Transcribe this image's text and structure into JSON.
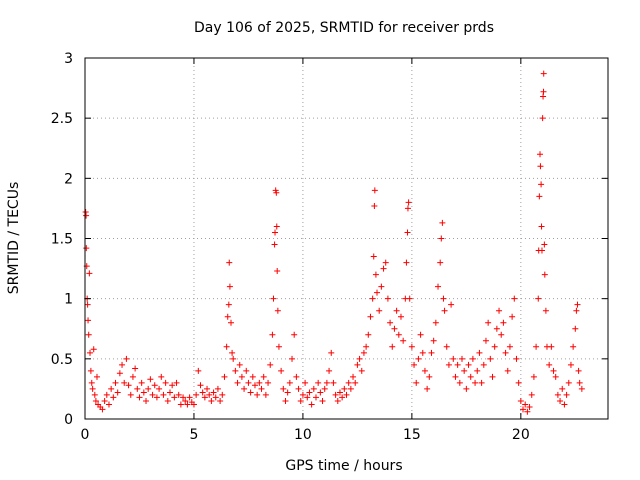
{
  "chart_data": {
    "type": "scatter",
    "title": "Day 106 of 2025, SRMTID for receiver prds",
    "xlabel": "GPS time / hours",
    "ylabel": "SRMTID / TECUs",
    "xlim": [
      0,
      24
    ],
    "ylim": [
      0,
      3
    ],
    "xticks": [
      0,
      5,
      10,
      15,
      20
    ],
    "yticks": [
      0,
      0.5,
      1,
      1.5,
      2,
      2.5,
      3
    ],
    "xtick_labels": [
      "0",
      "5",
      "10",
      "15",
      "20"
    ],
    "ytick_labels": [
      "0",
      "0.5",
      "1",
      "1.5",
      "2",
      "2.5",
      "3"
    ],
    "grid": true,
    "marker": "+",
    "series": [
      {
        "name": "SRMTID",
        "color": "#ff0000",
        "points": [
          [
            0.03,
            1.72
          ],
          [
            0.05,
            1.69
          ],
          [
            0.06,
            1.42
          ],
          [
            0.08,
            1.27
          ],
          [
            0.1,
            1.0
          ],
          [
            0.12,
            0.95
          ],
          [
            0.14,
            0.82
          ],
          [
            0.17,
            0.7
          ],
          [
            0.2,
            1.21
          ],
          [
            0.23,
            0.55
          ],
          [
            0.27,
            0.4
          ],
          [
            0.31,
            0.3
          ],
          [
            0.35,
            0.25
          ],
          [
            0.4,
            0.58
          ],
          [
            0.45,
            0.2
          ],
          [
            0.5,
            0.15
          ],
          [
            0.55,
            0.35
          ],
          [
            0.6,
            0.12
          ],
          [
            0.7,
            0.1
          ],
          [
            0.8,
            0.08
          ],
          [
            0.9,
            0.15
          ],
          [
            1.0,
            0.2
          ],
          [
            1.1,
            0.12
          ],
          [
            1.2,
            0.25
          ],
          [
            1.3,
            0.18
          ],
          [
            1.4,
            0.3
          ],
          [
            1.5,
            0.22
          ],
          [
            1.6,
            0.38
          ],
          [
            1.7,
            0.45
          ],
          [
            1.8,
            0.3
          ],
          [
            1.9,
            0.5
          ],
          [
            2.0,
            0.28
          ],
          [
            2.1,
            0.2
          ],
          [
            2.2,
            0.35
          ],
          [
            2.3,
            0.42
          ],
          [
            2.4,
            0.25
          ],
          [
            2.5,
            0.18
          ],
          [
            2.6,
            0.3
          ],
          [
            2.7,
            0.22
          ],
          [
            2.8,
            0.15
          ],
          [
            2.9,
            0.25
          ],
          [
            3.0,
            0.33
          ],
          [
            3.1,
            0.2
          ],
          [
            3.2,
            0.28
          ],
          [
            3.3,
            0.18
          ],
          [
            3.4,
            0.25
          ],
          [
            3.5,
            0.35
          ],
          [
            3.6,
            0.2
          ],
          [
            3.7,
            0.3
          ],
          [
            3.8,
            0.15
          ],
          [
            3.9,
            0.22
          ],
          [
            4.0,
            0.28
          ],
          [
            4.1,
            0.18
          ],
          [
            4.2,
            0.3
          ],
          [
            4.3,
            0.2
          ],
          [
            4.4,
            0.12
          ],
          [
            4.5,
            0.18
          ],
          [
            4.6,
            0.15
          ],
          [
            4.7,
            0.12
          ],
          [
            4.8,
            0.18
          ],
          [
            4.9,
            0.14
          ],
          [
            5.0,
            0.12
          ],
          [
            5.1,
            0.2
          ],
          [
            5.2,
            0.4
          ],
          [
            5.3,
            0.28
          ],
          [
            5.4,
            0.22
          ],
          [
            5.5,
            0.18
          ],
          [
            5.6,
            0.25
          ],
          [
            5.7,
            0.2
          ],
          [
            5.8,
            0.15
          ],
          [
            5.9,
            0.22
          ],
          [
            6.0,
            0.18
          ],
          [
            6.1,
            0.25
          ],
          [
            6.2,
            0.15
          ],
          [
            6.3,
            0.2
          ],
          [
            6.4,
            0.35
          ],
          [
            6.5,
            0.6
          ],
          [
            6.55,
            0.85
          ],
          [
            6.6,
            0.95
          ],
          [
            6.62,
            1.3
          ],
          [
            6.65,
            1.1
          ],
          [
            6.7,
            0.8
          ],
          [
            6.75,
            0.55
          ],
          [
            6.8,
            0.5
          ],
          [
            6.9,
            0.4
          ],
          [
            7.0,
            0.3
          ],
          [
            7.1,
            0.45
          ],
          [
            7.2,
            0.35
          ],
          [
            7.3,
            0.25
          ],
          [
            7.4,
            0.4
          ],
          [
            7.5,
            0.3
          ],
          [
            7.6,
            0.22
          ],
          [
            7.7,
            0.35
          ],
          [
            7.8,
            0.28
          ],
          [
            7.9,
            0.2
          ],
          [
            8.0,
            0.3
          ],
          [
            8.1,
            0.25
          ],
          [
            8.2,
            0.35
          ],
          [
            8.3,
            0.2
          ],
          [
            8.4,
            0.3
          ],
          [
            8.5,
            0.45
          ],
          [
            8.6,
            0.7
          ],
          [
            8.65,
            1.0
          ],
          [
            8.7,
            1.45
          ],
          [
            8.72,
            1.55
          ],
          [
            8.75,
            1.9
          ],
          [
            8.78,
            1.88
          ],
          [
            8.8,
            1.6
          ],
          [
            8.82,
            1.23
          ],
          [
            8.85,
            0.9
          ],
          [
            8.9,
            0.6
          ],
          [
            9.0,
            0.4
          ],
          [
            9.1,
            0.25
          ],
          [
            9.2,
            0.15
          ],
          [
            9.3,
            0.22
          ],
          [
            9.4,
            0.3
          ],
          [
            9.5,
            0.5
          ],
          [
            9.6,
            0.7
          ],
          [
            9.7,
            0.35
          ],
          [
            9.8,
            0.25
          ],
          [
            9.9,
            0.15
          ],
          [
            10.0,
            0.2
          ],
          [
            10.1,
            0.3
          ],
          [
            10.2,
            0.18
          ],
          [
            10.3,
            0.22
          ],
          [
            10.4,
            0.12
          ],
          [
            10.5,
            0.25
          ],
          [
            10.6,
            0.18
          ],
          [
            10.7,
            0.3
          ],
          [
            10.8,
            0.22
          ],
          [
            10.9,
            0.15
          ],
          [
            11.0,
            0.25
          ],
          [
            11.1,
            0.3
          ],
          [
            11.2,
            0.4
          ],
          [
            11.3,
            0.55
          ],
          [
            11.4,
            0.3
          ],
          [
            11.5,
            0.2
          ],
          [
            11.6,
            0.15
          ],
          [
            11.7,
            0.22
          ],
          [
            11.8,
            0.18
          ],
          [
            11.9,
            0.25
          ],
          [
            12.0,
            0.2
          ],
          [
            12.1,
            0.3
          ],
          [
            12.2,
            0.25
          ],
          [
            12.3,
            0.35
          ],
          [
            12.4,
            0.3
          ],
          [
            12.5,
            0.45
          ],
          [
            12.6,
            0.5
          ],
          [
            12.7,
            0.4
          ],
          [
            12.8,
            0.55
          ],
          [
            12.9,
            0.6
          ],
          [
            13.0,
            0.7
          ],
          [
            13.1,
            0.85
          ],
          [
            13.2,
            1.0
          ],
          [
            13.25,
            1.35
          ],
          [
            13.28,
            1.77
          ],
          [
            13.3,
            1.9
          ],
          [
            13.35,
            1.2
          ],
          [
            13.4,
            1.05
          ],
          [
            13.5,
            0.9
          ],
          [
            13.6,
            1.1
          ],
          [
            13.7,
            1.25
          ],
          [
            13.8,
            1.3
          ],
          [
            13.9,
            1.0
          ],
          [
            14.0,
            0.8
          ],
          [
            14.1,
            0.6
          ],
          [
            14.2,
            0.75
          ],
          [
            14.3,
            0.9
          ],
          [
            14.4,
            0.7
          ],
          [
            14.5,
            0.85
          ],
          [
            14.6,
            0.65
          ],
          [
            14.7,
            1.0
          ],
          [
            14.75,
            1.3
          ],
          [
            14.8,
            1.55
          ],
          [
            14.82,
            1.75
          ],
          [
            14.85,
            1.8
          ],
          [
            14.9,
            1.0
          ],
          [
            15.0,
            0.6
          ],
          [
            15.1,
            0.45
          ],
          [
            15.2,
            0.3
          ],
          [
            15.3,
            0.5
          ],
          [
            15.4,
            0.7
          ],
          [
            15.5,
            0.55
          ],
          [
            15.6,
            0.4
          ],
          [
            15.7,
            0.25
          ],
          [
            15.8,
            0.35
          ],
          [
            15.9,
            0.55
          ],
          [
            16.0,
            0.65
          ],
          [
            16.1,
            0.8
          ],
          [
            16.2,
            1.1
          ],
          [
            16.3,
            1.3
          ],
          [
            16.35,
            1.5
          ],
          [
            16.4,
            1.63
          ],
          [
            16.45,
            1.0
          ],
          [
            16.5,
            0.9
          ],
          [
            16.6,
            0.6
          ],
          [
            16.7,
            0.45
          ],
          [
            16.8,
            0.95
          ],
          [
            16.9,
            0.5
          ],
          [
            17.0,
            0.35
          ],
          [
            17.1,
            0.45
          ],
          [
            17.2,
            0.3
          ],
          [
            17.3,
            0.5
          ],
          [
            17.4,
            0.4
          ],
          [
            17.5,
            0.25
          ],
          [
            17.6,
            0.45
          ],
          [
            17.7,
            0.35
          ],
          [
            17.8,
            0.5
          ],
          [
            17.9,
            0.3
          ],
          [
            18.0,
            0.4
          ],
          [
            18.1,
            0.55
          ],
          [
            18.2,
            0.3
          ],
          [
            18.3,
            0.45
          ],
          [
            18.4,
            0.65
          ],
          [
            18.5,
            0.8
          ],
          [
            18.6,
            0.5
          ],
          [
            18.7,
            0.35
          ],
          [
            18.8,
            0.6
          ],
          [
            18.9,
            0.75
          ],
          [
            19.0,
            0.9
          ],
          [
            19.1,
            0.7
          ],
          [
            19.2,
            0.8
          ],
          [
            19.3,
            0.55
          ],
          [
            19.4,
            0.4
          ],
          [
            19.5,
            0.6
          ],
          [
            19.6,
            0.85
          ],
          [
            19.7,
            1.0
          ],
          [
            19.8,
            0.5
          ],
          [
            19.9,
            0.3
          ],
          [
            20.0,
            0.15
          ],
          [
            20.1,
            0.08
          ],
          [
            20.2,
            0.12
          ],
          [
            20.3,
            0.06
          ],
          [
            20.4,
            0.1
          ],
          [
            20.5,
            0.2
          ],
          [
            20.6,
            0.35
          ],
          [
            20.7,
            0.6
          ],
          [
            20.8,
            1.0
          ],
          [
            20.82,
            1.4
          ],
          [
            20.85,
            1.85
          ],
          [
            20.88,
            2.2
          ],
          [
            20.9,
            2.1
          ],
          [
            20.93,
            1.95
          ],
          [
            20.95,
            1.6
          ],
          [
            20.97,
            1.4
          ],
          [
            21.0,
            2.5
          ],
          [
            21.02,
            2.68
          ],
          [
            21.04,
            2.72
          ],
          [
            21.05,
            2.87
          ],
          [
            21.08,
            1.45
          ],
          [
            21.1,
            1.2
          ],
          [
            21.15,
            0.9
          ],
          [
            21.2,
            0.6
          ],
          [
            21.3,
            0.45
          ],
          [
            21.4,
            0.6
          ],
          [
            21.5,
            0.4
          ],
          [
            21.6,
            0.35
          ],
          [
            21.7,
            0.2
          ],
          [
            21.8,
            0.15
          ],
          [
            21.9,
            0.25
          ],
          [
            22.0,
            0.12
          ],
          [
            22.1,
            0.2
          ],
          [
            22.2,
            0.3
          ],
          [
            22.3,
            0.45
          ],
          [
            22.4,
            0.6
          ],
          [
            22.5,
            0.75
          ],
          [
            22.55,
            0.9
          ],
          [
            22.6,
            0.95
          ],
          [
            22.65,
            0.4
          ],
          [
            22.7,
            0.3
          ],
          [
            22.8,
            0.25
          ]
        ]
      }
    ]
  }
}
